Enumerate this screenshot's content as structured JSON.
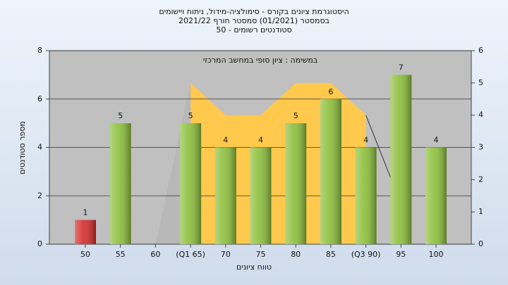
{
  "chart_data": {
    "type": "bar",
    "title": [
      "היסטוגרמת ציונים בקורס - סימולציה-מידול, ניתוח ויישומים",
      "בסמסטר  (01/2021)  סמסטר חורף 2021/22",
      "סטודנטים רשומים - 50"
    ],
    "annotation": "במשימה : ציון סופי במחשב המרכזי",
    "x_label": "טווח ציונים",
    "y_label": "מספר סטודנטים",
    "categories": [
      "50",
      "55",
      "60",
      "(Q1 65)",
      "70",
      "75",
      "80",
      "85",
      "(Q3 90)",
      "95",
      "100"
    ],
    "values": [
      1,
      5,
      0,
      5,
      4,
      4,
      5,
      6,
      4,
      7,
      4
    ],
    "bar_colors": [
      "#d42a2a",
      "#8cbf3a",
      "#8cbf3a",
      "#8cbf3a",
      "#8cbf3a",
      "#8cbf3a",
      "#8cbf3a",
      "#8cbf3a",
      "#8cbf3a",
      "#8cbf3a",
      "#8cbf3a"
    ],
    "ylim": [
      0,
      8
    ],
    "yticks": [
      0,
      2,
      4,
      6,
      8
    ],
    "y2lim": [
      0,
      6
    ],
    "y2ticks": [
      0,
      1,
      2,
      3,
      4,
      5,
      6
    ],
    "grid": true,
    "area_series": [
      {
        "axis": "y2",
        "color": "#b8b8b8",
        "fill": true,
        "values": [
          null,
          null,
          0,
          5,
          null,
          null,
          null,
          null,
          null,
          null,
          null
        ]
      },
      {
        "axis": "y2",
        "color": "#ffc94d",
        "fill": true,
        "values": [
          null,
          null,
          null,
          5,
          4,
          4,
          5,
          5,
          4,
          null,
          null
        ]
      },
      {
        "axis": "y2",
        "color": "#333333",
        "fill": false,
        "values": [
          null,
          null,
          null,
          null,
          null,
          null,
          null,
          null,
          4,
          1.25,
          null
        ]
      }
    ]
  }
}
